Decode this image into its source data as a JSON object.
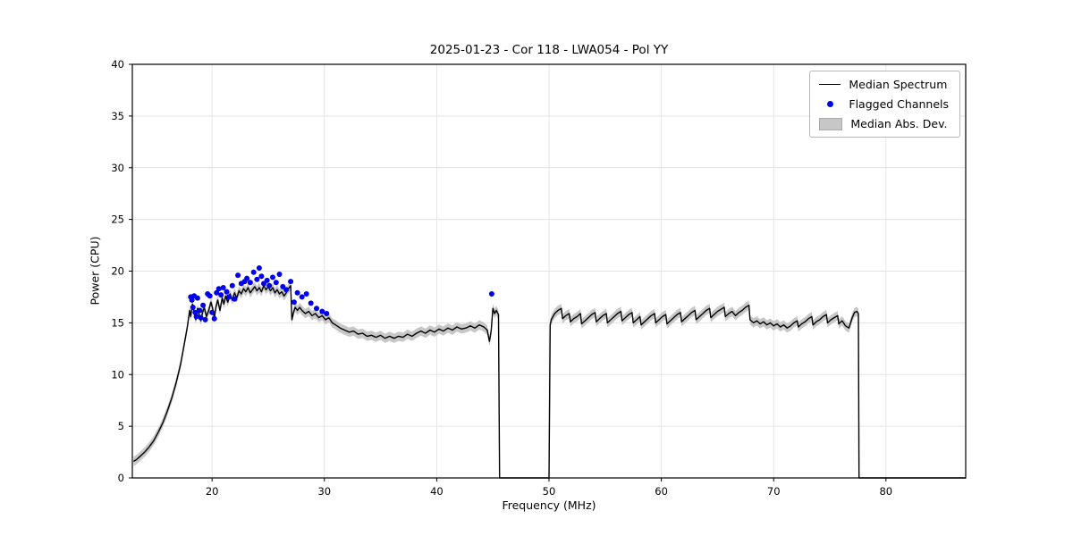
{
  "chart_data": {
    "type": "line",
    "title": "2025-01-23 - Cor 118 - LWA054 - Pol YY",
    "xlabel": "Frequency (MHz)",
    "ylabel": "Power (CPU)",
    "xlim": [
      12.9,
      87.1
    ],
    "ylim": [
      0,
      40
    ],
    "xticks": [
      20,
      30,
      40,
      50,
      60,
      70,
      80
    ],
    "yticks": [
      0,
      5,
      10,
      15,
      20,
      25,
      30,
      35,
      40
    ],
    "grid": true,
    "legend": {
      "position": "top-right"
    },
    "style": {
      "grid_color": "#e3e3e3",
      "frame_color": "#000000",
      "background": "#ffffff"
    },
    "series": [
      {
        "name": "Median Spectrum",
        "type": "line",
        "color": "#000000",
        "points": [
          [
            13.0,
            1.6
          ],
          [
            13.3,
            1.8
          ],
          [
            13.6,
            2.1
          ],
          [
            14.0,
            2.5
          ],
          [
            14.4,
            3.0
          ],
          [
            14.8,
            3.6
          ],
          [
            15.2,
            4.4
          ],
          [
            15.6,
            5.3
          ],
          [
            16.0,
            6.4
          ],
          [
            16.4,
            7.7
          ],
          [
            16.8,
            9.2
          ],
          [
            17.2,
            11.0
          ],
          [
            17.5,
            12.8
          ],
          [
            17.8,
            14.6
          ],
          [
            18.0,
            16.2
          ],
          [
            18.1,
            15.6
          ],
          [
            18.25,
            16.8
          ],
          [
            18.4,
            16.0
          ],
          [
            18.55,
            15.3
          ],
          [
            18.7,
            16.4
          ],
          [
            18.85,
            15.8
          ],
          [
            19.0,
            15.2
          ],
          [
            19.15,
            16.0
          ],
          [
            19.3,
            16.5
          ],
          [
            19.5,
            15.6
          ],
          [
            19.7,
            16.2
          ],
          [
            19.9,
            17.0
          ],
          [
            20.05,
            16.4
          ],
          [
            20.2,
            15.4
          ],
          [
            20.35,
            16.6
          ],
          [
            20.5,
            17.2
          ],
          [
            20.7,
            16.2
          ],
          [
            20.9,
            17.4
          ],
          [
            21.05,
            16.8
          ],
          [
            21.2,
            17.6
          ],
          [
            21.4,
            17.0
          ],
          [
            21.6,
            17.8
          ],
          [
            21.8,
            17.2
          ],
          [
            22.0,
            17.9
          ],
          [
            22.2,
            17.4
          ],
          [
            22.4,
            18.1
          ],
          [
            22.6,
            17.8
          ],
          [
            22.8,
            18.3
          ],
          [
            23.0,
            18.0
          ],
          [
            23.2,
            18.4
          ],
          [
            23.4,
            17.9
          ],
          [
            23.6,
            18.2
          ],
          [
            23.8,
            18.5
          ],
          [
            24.0,
            18.1
          ],
          [
            24.2,
            18.4
          ],
          [
            24.4,
            18.0
          ],
          [
            24.6,
            18.6
          ],
          [
            24.8,
            18.2
          ],
          [
            25.0,
            18.5
          ],
          [
            25.2,
            18.1
          ],
          [
            25.4,
            18.4
          ],
          [
            25.6,
            17.9
          ],
          [
            25.8,
            18.2
          ],
          [
            26.0,
            17.8
          ],
          [
            26.2,
            18.0
          ],
          [
            26.4,
            17.6
          ],
          [
            26.6,
            17.9
          ],
          [
            26.8,
            18.3
          ],
          [
            27.0,
            18.6
          ],
          [
            27.1,
            15.3
          ],
          [
            27.25,
            16.0
          ],
          [
            27.4,
            16.5
          ],
          [
            27.6,
            16.2
          ],
          [
            27.8,
            16.5
          ],
          [
            28.0,
            16.2
          ],
          [
            28.3,
            15.9
          ],
          [
            28.6,
            16.1
          ],
          [
            28.9,
            15.7
          ],
          [
            29.2,
            15.9
          ],
          [
            29.5,
            15.5
          ],
          [
            29.8,
            15.7
          ],
          [
            30.1,
            15.3
          ],
          [
            30.4,
            15.5
          ],
          [
            30.7,
            15.0
          ],
          [
            31.0,
            14.8
          ],
          [
            31.4,
            14.5
          ],
          [
            31.8,
            14.3
          ],
          [
            32.2,
            14.1
          ],
          [
            32.6,
            14.2
          ],
          [
            33.0,
            13.9
          ],
          [
            33.4,
            14.0
          ],
          [
            33.8,
            13.7
          ],
          [
            34.2,
            13.8
          ],
          [
            34.6,
            13.6
          ],
          [
            35.0,
            13.8
          ],
          [
            35.4,
            13.5
          ],
          [
            35.8,
            13.7
          ],
          [
            36.2,
            13.5
          ],
          [
            36.6,
            13.7
          ],
          [
            37.0,
            13.6
          ],
          [
            37.4,
            13.9
          ],
          [
            37.8,
            13.7
          ],
          [
            38.2,
            14.0
          ],
          [
            38.6,
            14.2
          ],
          [
            39.0,
            14.0
          ],
          [
            39.4,
            14.3
          ],
          [
            39.8,
            14.1
          ],
          [
            40.2,
            14.4
          ],
          [
            40.6,
            14.2
          ],
          [
            41.0,
            14.5
          ],
          [
            41.4,
            14.3
          ],
          [
            41.8,
            14.6
          ],
          [
            42.2,
            14.4
          ],
          [
            42.6,
            14.5
          ],
          [
            43.0,
            14.7
          ],
          [
            43.4,
            14.5
          ],
          [
            43.8,
            14.8
          ],
          [
            44.2,
            14.6
          ],
          [
            44.5,
            14.3
          ],
          [
            44.7,
            13.2
          ],
          [
            44.85,
            14.2
          ],
          [
            45.0,
            16.4
          ],
          [
            45.15,
            15.9
          ],
          [
            45.3,
            16.2
          ],
          [
            45.5,
            15.8
          ],
          [
            45.6,
            0.0
          ],
          [
            50.0,
            0.0
          ],
          [
            50.1,
            14.8
          ],
          [
            50.2,
            15.3
          ],
          [
            50.5,
            15.9
          ],
          [
            50.8,
            16.2
          ],
          [
            51.1,
            16.4
          ],
          [
            51.2,
            15.4
          ],
          [
            51.5,
            15.7
          ],
          [
            51.8,
            15.9
          ],
          [
            51.9,
            15.1
          ],
          [
            52.2,
            15.4
          ],
          [
            52.5,
            15.6
          ],
          [
            52.8,
            15.9
          ],
          [
            52.9,
            14.9
          ],
          [
            53.2,
            15.2
          ],
          [
            53.5,
            15.5
          ],
          [
            53.8,
            15.8
          ],
          [
            54.1,
            16.0
          ],
          [
            54.2,
            15.1
          ],
          [
            54.5,
            15.4
          ],
          [
            54.8,
            15.7
          ],
          [
            55.1,
            15.9
          ],
          [
            55.2,
            15.0
          ],
          [
            55.5,
            15.3
          ],
          [
            55.8,
            15.6
          ],
          [
            56.1,
            15.9
          ],
          [
            56.4,
            16.1
          ],
          [
            56.5,
            15.2
          ],
          [
            56.8,
            15.5
          ],
          [
            57.1,
            15.8
          ],
          [
            57.4,
            16.0
          ],
          [
            57.5,
            15.0
          ],
          [
            57.8,
            15.3
          ],
          [
            58.1,
            15.6
          ],
          [
            58.2,
            14.8
          ],
          [
            58.5,
            15.1
          ],
          [
            58.8,
            15.4
          ],
          [
            59.1,
            15.7
          ],
          [
            59.4,
            15.9
          ],
          [
            59.5,
            15.0
          ],
          [
            59.8,
            15.3
          ],
          [
            60.1,
            15.6
          ],
          [
            60.4,
            15.8
          ],
          [
            60.5,
            14.9
          ],
          [
            60.8,
            15.2
          ],
          [
            61.1,
            15.5
          ],
          [
            61.4,
            15.8
          ],
          [
            61.7,
            16.0
          ],
          [
            61.8,
            15.1
          ],
          [
            62.1,
            15.4
          ],
          [
            62.4,
            15.7
          ],
          [
            62.7,
            16.0
          ],
          [
            63.0,
            16.2
          ],
          [
            63.1,
            15.3
          ],
          [
            63.4,
            15.6
          ],
          [
            63.7,
            15.9
          ],
          [
            64.0,
            16.2
          ],
          [
            64.3,
            16.4
          ],
          [
            64.4,
            15.5
          ],
          [
            64.7,
            15.8
          ],
          [
            65.0,
            16.1
          ],
          [
            65.3,
            16.3
          ],
          [
            65.6,
            16.5
          ],
          [
            65.7,
            15.6
          ],
          [
            66.0,
            15.9
          ],
          [
            66.3,
            16.1
          ],
          [
            66.6,
            15.7
          ],
          [
            66.9,
            16.0
          ],
          [
            67.2,
            16.2
          ],
          [
            67.5,
            16.5
          ],
          [
            67.8,
            16.7
          ],
          [
            67.9,
            15.3
          ],
          [
            68.2,
            15.0
          ],
          [
            68.5,
            15.2
          ],
          [
            68.8,
            14.9
          ],
          [
            69.1,
            15.1
          ],
          [
            69.4,
            14.8
          ],
          [
            69.7,
            15.0
          ],
          [
            70.0,
            14.7
          ],
          [
            70.3,
            14.9
          ],
          [
            70.6,
            14.6
          ],
          [
            70.9,
            14.8
          ],
          [
            71.2,
            14.5
          ],
          [
            71.5,
            14.7
          ],
          [
            71.8,
            15.0
          ],
          [
            72.1,
            15.2
          ],
          [
            72.2,
            14.6
          ],
          [
            72.5,
            14.9
          ],
          [
            72.8,
            15.1
          ],
          [
            73.1,
            15.4
          ],
          [
            73.4,
            15.6
          ],
          [
            73.5,
            14.8
          ],
          [
            73.8,
            15.1
          ],
          [
            74.1,
            15.3
          ],
          [
            74.4,
            15.6
          ],
          [
            74.7,
            15.8
          ],
          [
            74.8,
            15.0
          ],
          [
            75.1,
            15.3
          ],
          [
            75.4,
            15.5
          ],
          [
            75.7,
            15.7
          ],
          [
            75.8,
            14.9
          ],
          [
            76.1,
            15.2
          ],
          [
            76.4,
            14.7
          ],
          [
            76.7,
            14.5
          ],
          [
            77.0,
            15.5
          ],
          [
            77.2,
            16.0
          ],
          [
            77.4,
            16.1
          ],
          [
            77.55,
            15.9
          ],
          [
            77.6,
            0.0
          ],
          [
            87.1,
            0.0
          ]
        ]
      },
      {
        "name": "Flagged Channels",
        "type": "scatter",
        "color": "#0000ee",
        "points": [
          [
            18.1,
            17.5
          ],
          [
            18.2,
            17.2
          ],
          [
            18.3,
            16.5
          ],
          [
            18.4,
            17.6
          ],
          [
            18.5,
            16.0
          ],
          [
            18.6,
            15.6
          ],
          [
            18.7,
            17.4
          ],
          [
            18.9,
            16.2
          ],
          [
            19.0,
            15.5
          ],
          [
            19.2,
            16.7
          ],
          [
            19.4,
            15.3
          ],
          [
            19.6,
            17.8
          ],
          [
            19.8,
            17.6
          ],
          [
            20.0,
            16.0
          ],
          [
            20.2,
            15.4
          ],
          [
            20.4,
            17.9
          ],
          [
            20.6,
            18.3
          ],
          [
            20.8,
            17.7
          ],
          [
            21.0,
            18.4
          ],
          [
            21.3,
            18.0
          ],
          [
            21.5,
            17.5
          ],
          [
            21.8,
            18.6
          ],
          [
            22.0,
            17.3
          ],
          [
            22.3,
            19.6
          ],
          [
            22.6,
            18.8
          ],
          [
            22.9,
            19.0
          ],
          [
            23.1,
            19.3
          ],
          [
            23.4,
            18.9
          ],
          [
            23.7,
            19.9
          ],
          [
            24.0,
            19.2
          ],
          [
            24.2,
            20.3
          ],
          [
            24.4,
            19.5
          ],
          [
            24.6,
            18.8
          ],
          [
            24.9,
            19.1
          ],
          [
            25.1,
            18.6
          ],
          [
            25.4,
            19.4
          ],
          [
            25.7,
            18.9
          ],
          [
            26.0,
            19.7
          ],
          [
            26.3,
            18.5
          ],
          [
            26.6,
            18.2
          ],
          [
            27.0,
            19.0
          ],
          [
            27.3,
            17.0
          ],
          [
            27.6,
            17.9
          ],
          [
            28.0,
            17.5
          ],
          [
            28.4,
            17.8
          ],
          [
            28.8,
            16.9
          ],
          [
            29.3,
            16.4
          ],
          [
            29.8,
            16.1
          ],
          [
            30.2,
            15.9
          ],
          [
            44.9,
            17.8
          ]
        ]
      },
      {
        "name": "Median Abs. Dev.",
        "type": "band",
        "color": "#c7c7c7",
        "halfwidth": 0.45,
        "follows": "Median Spectrum"
      }
    ]
  }
}
